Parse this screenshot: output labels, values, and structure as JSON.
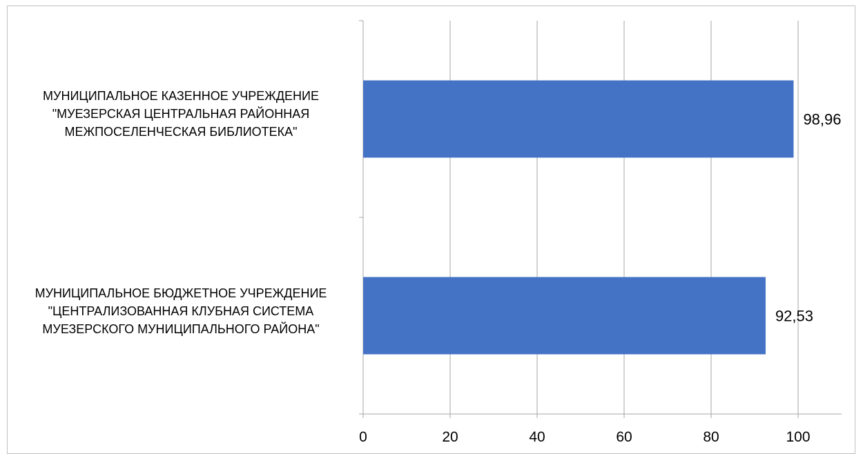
{
  "chart_data": {
    "type": "bar",
    "orientation": "horizontal",
    "categories": [
      [
        "МУНИЦИПАЛЬНОЕ КАЗЕННОЕ УЧРЕЖДЕНИЕ",
        "\"МУЕЗЕРСКАЯ ЦЕНТРАЛЬНАЯ РАЙОННАЯ",
        "МЕЖПОСЕЛЕНЧЕСКАЯ БИБЛИОТЕКА\""
      ],
      [
        "МУНИЦИПАЛЬНОЕ БЮДЖЕТНОЕ УЧРЕЖДЕНИЕ",
        "\"ЦЕНТРАЛИЗОВАННАЯ КЛУБНАЯ СИСТЕМА",
        "МУЕЗЕРСКОГО МУНИЦИПАЛЬНОГО РАЙОНА\""
      ]
    ],
    "values": [
      98.96,
      92.53
    ],
    "data_labels": [
      "98,96",
      "92,53"
    ],
    "x_ticks": [
      "0",
      "20",
      "40",
      "60",
      "80",
      "100"
    ],
    "xlim": [
      0,
      110
    ],
    "grid": "vertical",
    "legend": "none",
    "colors": {
      "bar": "#4472c4",
      "grid": "#a6a6a6",
      "axis": "#a6a6a6"
    }
  }
}
